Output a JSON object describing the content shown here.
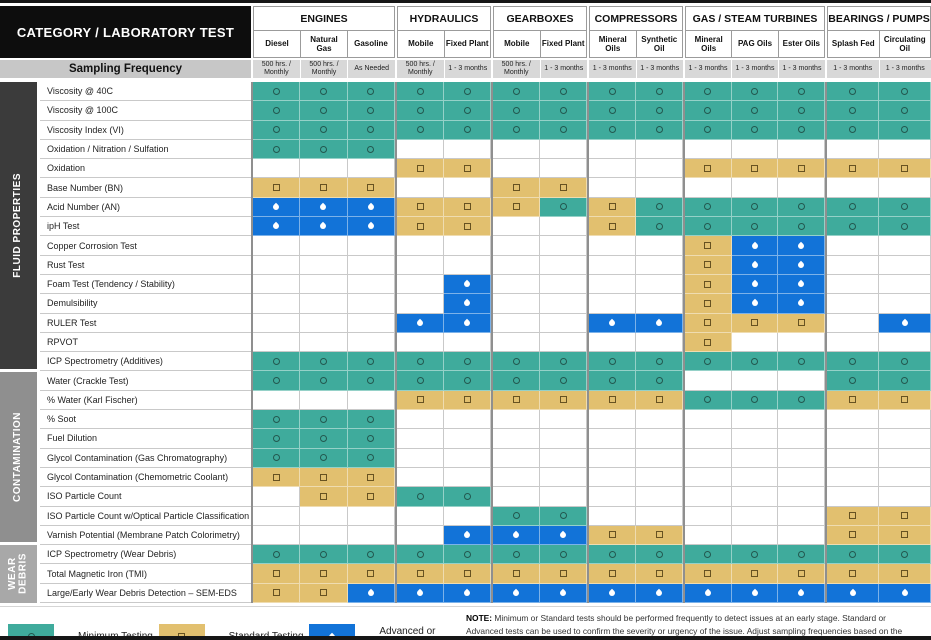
{
  "header": {
    "title": "CATEGORY / LABORATORY TEST",
    "sampling_label": "Sampling Frequency"
  },
  "column_groups": [
    {
      "label": "ENGINES",
      "columns": [
        {
          "name": "Diesel",
          "freq": "500 hrs. / Monthly"
        },
        {
          "name": "Natural Gas",
          "freq": "500 hrs. / Monthly"
        },
        {
          "name": "Gasoline",
          "freq": "As Needed"
        }
      ]
    },
    {
      "label": "HYDRAULICS",
      "columns": [
        {
          "name": "Mobile",
          "freq": "500 hrs. / Monthly"
        },
        {
          "name": "Fixed Plant",
          "freq": "1 - 3 months"
        }
      ]
    },
    {
      "label": "GEARBOXES",
      "columns": [
        {
          "name": "Mobile",
          "freq": "500 hrs. / Monthly"
        },
        {
          "name": "Fixed Plant",
          "freq": "1 - 3 months"
        }
      ]
    },
    {
      "label": "COMPRESSORS",
      "columns": [
        {
          "name": "Mineral Oils",
          "freq": "1 - 3 months"
        },
        {
          "name": "Synthetic Oil",
          "freq": "1 - 3 months"
        }
      ]
    },
    {
      "label": "GAS / STEAM TURBINES",
      "columns": [
        {
          "name": "Mineral Oils",
          "freq": "1 - 3 months"
        },
        {
          "name": "PAG Oils",
          "freq": "1 - 3 months"
        },
        {
          "name": "Ester Oils",
          "freq": "1 - 3 months"
        }
      ]
    },
    {
      "label": "BEARINGS / PUMPS",
      "columns": [
        {
          "name": "Splash Fed",
          "freq": "1 - 3 months"
        },
        {
          "name": "Circulating Oil",
          "freq": "1 - 3 months"
        }
      ]
    }
  ],
  "cell_legend_key": {
    "m": "Minimum Testing",
    "s": "Standard Testing",
    "a": "Advanced or Proactive Testing",
    ".": "not applicable"
  },
  "row_groups": [
    {
      "label": "FLUID PROPERTIES",
      "rows": [
        {
          "label": "Viscosity @ 40C",
          "cells": "mmmmmmmmmmmmmm"
        },
        {
          "label": "Viscosity @ 100C",
          "cells": "mmmmmmmmmmmmmm"
        },
        {
          "label": "Viscosity Index (VI)",
          "cells": "mmmmmmmmmmmmmm"
        },
        {
          "label": "Oxidation / Nitration / Sulfation",
          "cells": "mmm..........."
        },
        {
          "label": "Oxidation",
          "cells": "...ss....sssss"
        },
        {
          "label": "Base Number (BN)",
          "cells": "sss..ss......."
        },
        {
          "label": "Acid Number (AN)",
          "cells": "aaasssmsmmmmmm"
        },
        {
          "label": "ipH Test",
          "cells": "aaass..smmmmmm"
        },
        {
          "label": "Copper Corrosion Test",
          "cells": ".........saa.."
        },
        {
          "label": "Rust Test",
          "cells": ".........saa.."
        },
        {
          "label": "Foam Test (Tendency / Stability)",
          "cells": "....a....saa.."
        },
        {
          "label": "Demulsibility",
          "cells": "....a....saa.."
        },
        {
          "label": "RULER Test",
          "cells": "...aa..aasss.a"
        },
        {
          "label": "RPVOT",
          "cells": ".........s...."
        },
        {
          "label": "ICP Spectrometry (Additives)",
          "cells": "mmmmmmmmmmmmmm"
        }
      ]
    },
    {
      "label": "CONTAMINATION",
      "rows": [
        {
          "label": "Water (Crackle Test)",
          "cells": "mmmmmmmmm...mm"
        },
        {
          "label": "% Water (Karl Fischer)",
          "cells": "...ssssssmmmss"
        },
        {
          "label": "% Soot",
          "cells": "mmm..........."
        },
        {
          "label": "Fuel Dilution",
          "cells": "mmm..........."
        },
        {
          "label": "Glycol Contamination (Gas Chromatography)",
          "cells": "mmm..........."
        },
        {
          "label": "Glycol Contamination (Chemometric Coolant)",
          "cells": "sss..........."
        },
        {
          "label": "ISO Particle Count",
          "cells": ".ssmm........."
        },
        {
          "label": "ISO Particle Count w/Optical Particle Classification (OPC)",
          "cells": ".....mm.....ss"
        },
        {
          "label": "Varnish Potential (Membrane Patch Colorimetry)",
          "cells": "....aaass...ss"
        }
      ]
    },
    {
      "label": "WEAR DEBRIS",
      "rows": [
        {
          "label": "ICP Spectrometry (Wear Debris)",
          "cells": "mmmmmmmmmmmmmm"
        },
        {
          "label": "Total Magnetic Iron (TMI)",
          "cells": "ssssssssssssss"
        },
        {
          "label": "Large/Early Wear Debris Detection – SEM-EDS",
          "cells": "ssaaaaaaaaaaaa"
        }
      ]
    }
  ],
  "legend": [
    {
      "type": "m",
      "label": "Minimum Testing"
    },
    {
      "type": "s",
      "label": "Standard Testing"
    },
    {
      "type": "a",
      "label": "Advanced or Proactive Testing"
    }
  ],
  "note": {
    "prefix": "NOTE:",
    "text": " Minimum or Standard tests should be performed frequently to detect issues at an early stage. Standard or Advanced tests can be used to confirm the severity or urgency of the issue. Adjust sampling frequencies based on the nature of failure modes, asset criticality, safety, and environmental concerns. Please contact Fluid Life for program planning support (www.fluidlife.com)."
  },
  "colors": {
    "minimum": "#3fab9c",
    "standard": "#e2c06f",
    "advanced": "#1273d8"
  }
}
